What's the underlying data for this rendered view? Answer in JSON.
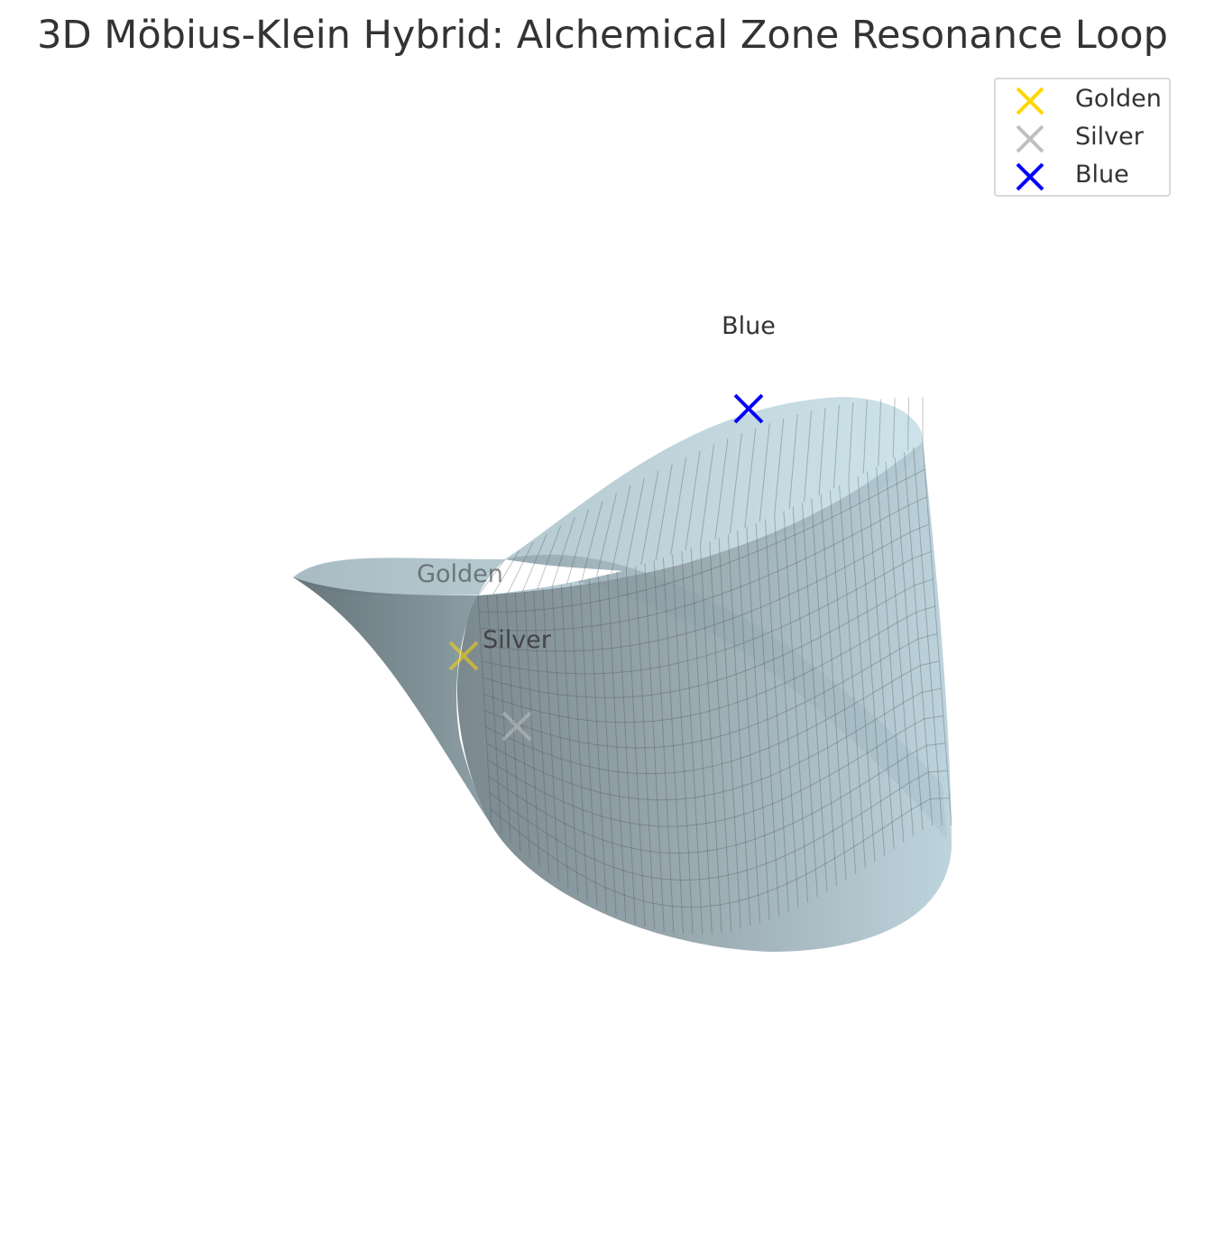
{
  "chart_data": {
    "type": "surface",
    "title": "3D Möbius-Klein Hybrid: Alchemical Zone Resonance Loop",
    "surface": {
      "colormap": "bone-like (grey to light blue)",
      "alpha": 0.6,
      "wireframe": true
    },
    "series": [
      {
        "name": "Golden",
        "marker": "x",
        "color": "#FFD700"
      },
      {
        "name": "Silver",
        "marker": "x",
        "color": "#C0C0C0"
      },
      {
        "name": "Blue",
        "marker": "x",
        "color": "#0000FF"
      }
    ],
    "annotations": [
      "Golden",
      "Silver",
      "Blue"
    ],
    "legend": {
      "position": "top-right"
    },
    "axes_visible": false
  }
}
